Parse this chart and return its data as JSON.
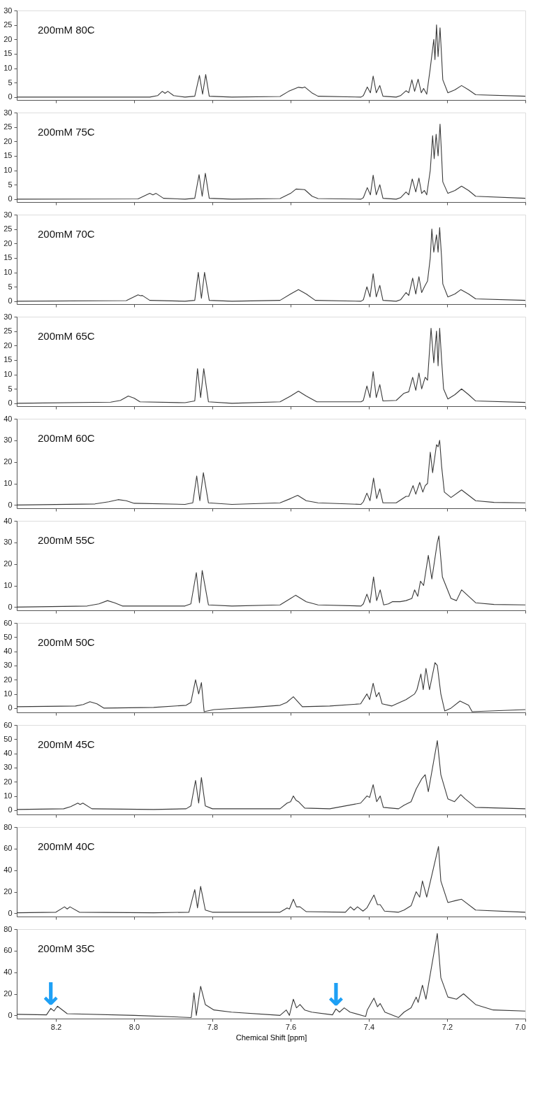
{
  "chart_data": [
    {
      "type": "line",
      "annotations": [
        "200mM 80C"
      ],
      "xlim": [
        8.3,
        7.0
      ],
      "xticks": [
        8.2,
        8.0,
        7.8,
        7.6,
        7.4,
        7.2,
        7.0
      ],
      "ylim": [
        -1,
        30
      ],
      "yticks": [
        0,
        5,
        10,
        15,
        20,
        25,
        30
      ],
      "tick_labels": "y",
      "grid": false,
      "x": [
        8.3,
        7.96,
        7.94,
        7.928,
        7.921,
        7.914,
        7.899,
        7.87,
        7.845,
        7.833,
        7.825,
        7.817,
        7.808,
        7.75,
        7.627,
        7.605,
        7.58,
        7.57,
        7.564,
        7.546,
        7.53,
        7.42,
        7.414,
        7.404,
        7.396,
        7.389,
        7.381,
        7.372,
        7.364,
        7.33,
        7.319,
        7.305,
        7.298,
        7.29,
        7.283,
        7.274,
        7.266,
        7.26,
        7.252,
        7.243,
        7.234,
        7.231,
        7.227,
        7.223,
        7.218,
        7.214,
        7.211,
        7.198,
        7.18,
        7.163,
        7.145,
        7.127,
        7.0
      ],
      "series": [
        {
          "color": "#3a3a3a",
          "values": [
            0,
            0,
            0.5,
            2,
            1.3,
            2,
            0.5,
            0,
            0.3,
            7.5,
            1,
            7.8,
            0.3,
            0,
            0.2,
            2,
            3.4,
            3.2,
            3.5,
            1.5,
            0.3,
            0,
            0.5,
            3.5,
            1.5,
            7.3,
            1.5,
            4,
            0.3,
            0,
            0.5,
            2.2,
            1.5,
            6,
            2,
            6.2,
            1.5,
            3,
            1,
            10,
            20,
            13,
            25,
            14,
            24,
            14,
            6,
            1.5,
            2.5,
            4,
            2.5,
            0.8,
            0.3
          ]
        }
      ]
    },
    {
      "type": "line",
      "annotations": [
        "200mM 75C"
      ],
      "xlim": [
        8.3,
        7.0
      ],
      "xticks": [
        8.2,
        8.0,
        7.8,
        7.6,
        7.4,
        7.2,
        7.0
      ],
      "ylim": [
        -1,
        30
      ],
      "yticks": [
        0,
        5,
        10,
        15,
        20,
        25,
        30
      ],
      "tick_labels": "y",
      "grid": false,
      "x": [
        8.3,
        7.99,
        7.96,
        7.952,
        7.944,
        7.925,
        7.87,
        7.845,
        7.834,
        7.826,
        7.818,
        7.808,
        7.75,
        7.627,
        7.6,
        7.586,
        7.564,
        7.545,
        7.53,
        7.42,
        7.414,
        7.404,
        7.396,
        7.389,
        7.381,
        7.372,
        7.364,
        7.33,
        7.319,
        7.305,
        7.298,
        7.289,
        7.28,
        7.272,
        7.265,
        7.258,
        7.252,
        7.243,
        7.237,
        7.233,
        7.228,
        7.223,
        7.218,
        7.214,
        7.211,
        7.198,
        7.18,
        7.163,
        7.145,
        7.127,
        7.0
      ],
      "series": [
        {
          "color": "#3a3a3a",
          "values": [
            0,
            0.1,
            2,
            1.5,
            2,
            0.3,
            0,
            0.3,
            8.5,
            1,
            9,
            0.3,
            0,
            0.2,
            2,
            3.5,
            3.3,
            1,
            0.2,
            0,
            0.5,
            4,
            1.5,
            8.3,
            1.5,
            5,
            0.3,
            0,
            0.5,
            2.5,
            1.5,
            7,
            2.5,
            7.3,
            2,
            3,
            1.5,
            10,
            22,
            14,
            22.5,
            15,
            26,
            15,
            6,
            2,
            3,
            4.5,
            3,
            1,
            0.3
          ]
        }
      ]
    },
    {
      "type": "line",
      "annotations": [
        "200mM 70C"
      ],
      "xlim": [
        8.3,
        7.0
      ],
      "xticks": [
        8.2,
        8.0,
        7.8,
        7.6,
        7.4,
        7.2,
        7.0
      ],
      "ylim": [
        -1,
        30
      ],
      "yticks": [
        0,
        5,
        10,
        15,
        20,
        25,
        30
      ],
      "tick_labels": "y",
      "grid": false,
      "x": [
        8.3,
        8.02,
        7.99,
        7.984,
        7.979,
        7.96,
        7.87,
        7.845,
        7.836,
        7.828,
        7.82,
        7.808,
        7.75,
        7.627,
        7.6,
        7.58,
        7.56,
        7.537,
        7.42,
        7.414,
        7.405,
        7.397,
        7.389,
        7.381,
        7.372,
        7.364,
        7.33,
        7.319,
        7.305,
        7.298,
        7.288,
        7.28,
        7.272,
        7.265,
        7.258,
        7.25,
        7.243,
        7.239,
        7.234,
        7.227,
        7.223,
        7.219,
        7.214,
        7.211,
        7.198,
        7.18,
        7.165,
        7.145,
        7.127,
        7.0
      ],
      "series": [
        {
          "color": "#3a3a3a",
          "values": [
            0,
            0.2,
            2.2,
            1.9,
            2,
            0.3,
            0,
            0.3,
            10,
            1,
            10,
            0.3,
            0,
            0.3,
            2.5,
            4,
            2.5,
            0.3,
            0,
            0.5,
            5,
            1.5,
            9.5,
            1.5,
            5.5,
            0.3,
            0,
            0.5,
            3,
            2,
            8,
            2.5,
            8.5,
            3,
            5,
            7,
            15,
            25,
            17,
            23,
            17,
            25.5,
            15,
            6,
            1.5,
            2.5,
            4,
            2.5,
            0.8,
            0.3
          ]
        }
      ]
    },
    {
      "type": "line",
      "annotations": [
        "200mM 65C"
      ],
      "xlim": [
        8.3,
        7.0
      ],
      "xticks": [
        8.2,
        8.0,
        7.8,
        7.6,
        7.4,
        7.2,
        7.0
      ],
      "ylim": [
        -1,
        30
      ],
      "yticks": [
        0,
        5,
        10,
        15,
        20,
        25,
        30
      ],
      "tick_labels": "y",
      "grid": false,
      "x": [
        8.3,
        8.06,
        8.035,
        8.015,
        8.0,
        7.985,
        7.87,
        7.845,
        7.838,
        7.83,
        7.822,
        7.81,
        7.75,
        7.627,
        7.6,
        7.58,
        7.56,
        7.533,
        7.42,
        7.414,
        7.405,
        7.397,
        7.389,
        7.381,
        7.372,
        7.364,
        7.33,
        7.31,
        7.298,
        7.288,
        7.28,
        7.272,
        7.265,
        7.256,
        7.25,
        7.241,
        7.234,
        7.227,
        7.223,
        7.219,
        7.214,
        7.209,
        7.198,
        7.18,
        7.163,
        7.145,
        7.127,
        7.0
      ],
      "series": [
        {
          "color": "#3a3a3a",
          "values": [
            0,
            0.4,
            1,
            2.5,
            1.8,
            0.5,
            0.2,
            0.8,
            12,
            2,
            12,
            0.5,
            0,
            0.5,
            2.5,
            4.2,
            2.5,
            0.5,
            0.5,
            1,
            6,
            2,
            11,
            2,
            6.5,
            0.8,
            1,
            3.5,
            4,
            9,
            4.5,
            10.5,
            5,
            9,
            8,
            26,
            14,
            25,
            13,
            26,
            15,
            5,
            1.5,
            3,
            5,
            3,
            0.8,
            0.3
          ]
        }
      ]
    },
    {
      "type": "line",
      "annotations": [
        "200mM 60C"
      ],
      "xlim": [
        8.3,
        7.0
      ],
      "xticks": [
        8.2,
        8.0,
        7.8,
        7.6,
        7.4,
        7.2,
        7.0
      ],
      "ylim": [
        -1.5,
        40
      ],
      "yticks": [
        0,
        10,
        20,
        30,
        40
      ],
      "tick_labels": "y",
      "grid": false,
      "x": [
        8.3,
        8.1,
        8.065,
        8.041,
        8.02,
        8.0,
        7.87,
        7.85,
        7.84,
        7.832,
        7.823,
        7.81,
        7.75,
        7.627,
        7.6,
        7.582,
        7.56,
        7.53,
        7.42,
        7.414,
        7.405,
        7.397,
        7.388,
        7.38,
        7.372,
        7.364,
        7.33,
        7.305,
        7.298,
        7.287,
        7.28,
        7.27,
        7.262,
        7.256,
        7.25,
        7.243,
        7.237,
        7.227,
        7.223,
        7.219,
        7.214,
        7.207,
        7.19,
        7.163,
        7.145,
        7.127,
        7.08,
        7.0
      ],
      "series": [
        {
          "color": "#3a3a3a",
          "values": [
            0,
            0.5,
            1.5,
            2.5,
            2,
            0.8,
            0.3,
            1,
            13.5,
            2,
            15,
            1,
            0.3,
            1,
            3,
            4.5,
            2,
            1,
            0.3,
            1.5,
            5.5,
            2,
            12.5,
            3,
            7.5,
            1,
            1,
            4,
            4,
            9,
            5,
            10.5,
            6,
            9,
            10,
            24.5,
            15,
            28,
            27,
            30,
            18,
            6,
            3.5,
            7,
            4.5,
            2,
            1.2,
            1
          ]
        }
      ]
    },
    {
      "type": "line",
      "annotations": [
        "200mM 55C"
      ],
      "xlim": [
        8.3,
        7.0
      ],
      "xticks": [
        8.2,
        8.0,
        7.8,
        7.6,
        7.4,
        7.2,
        7.0
      ],
      "ylim": [
        -1.5,
        40
      ],
      "yticks": [
        0,
        10,
        20,
        30,
        40
      ],
      "tick_labels": "y",
      "grid": false,
      "x": [
        8.3,
        8.12,
        8.09,
        8.068,
        8.05,
        8.03,
        7.87,
        7.855,
        7.841,
        7.833,
        7.826,
        7.81,
        7.75,
        7.627,
        7.6,
        7.587,
        7.56,
        7.53,
        7.42,
        7.414,
        7.405,
        7.397,
        7.388,
        7.38,
        7.371,
        7.362,
        7.35,
        7.34,
        7.32,
        7.305,
        7.29,
        7.283,
        7.275,
        7.268,
        7.26,
        7.248,
        7.239,
        7.225,
        7.221,
        7.212,
        7.19,
        7.176,
        7.163,
        7.145,
        7.127,
        7.08,
        7.0
      ],
      "series": [
        {
          "color": "#3a3a3a",
          "values": [
            0,
            0.5,
            1.5,
            3,
            2,
            0.5,
            0.5,
            1.5,
            16,
            2,
            17,
            1,
            0.5,
            1,
            4,
            5.5,
            2.5,
            1,
            0.5,
            1.5,
            6,
            2,
            14,
            3,
            8,
            1,
            1.5,
            2.5,
            2.5,
            3,
            4,
            8,
            5,
            12,
            10,
            24,
            13,
            30,
            33,
            14,
            4,
            3,
            8,
            5,
            2,
            1.2,
            1
          ]
        }
      ]
    },
    {
      "type": "line",
      "annotations": [
        "200mM 50C"
      ],
      "xlim": [
        8.3,
        7.0
      ],
      "xticks": [
        8.2,
        8.0,
        7.8,
        7.6,
        7.4,
        7.2,
        7.0
      ],
      "ylim": [
        -3,
        60
      ],
      "yticks": [
        0,
        10,
        20,
        30,
        40,
        50,
        60
      ],
      "tick_labels": "y",
      "grid": false,
      "x": [
        8.3,
        8.15,
        8.13,
        8.113,
        8.095,
        8.077,
        7.95,
        7.867,
        7.855,
        7.843,
        7.835,
        7.828,
        7.821,
        7.796,
        7.7,
        7.627,
        7.61,
        7.593,
        7.57,
        7.5,
        7.421,
        7.405,
        7.398,
        7.389,
        7.381,
        7.374,
        7.366,
        7.341,
        7.305,
        7.283,
        7.277,
        7.267,
        7.261,
        7.254,
        7.245,
        7.231,
        7.225,
        7.216,
        7.206,
        7.19,
        7.167,
        7.145,
        7.136,
        7.0
      ],
      "series": [
        {
          "color": "#3a3a3a",
          "values": [
            1,
            1.5,
            2.5,
            4.5,
            3,
            0,
            0.5,
            2,
            4,
            20,
            10,
            18,
            -2.5,
            -1,
            0.5,
            2,
            4,
            8,
            1,
            1.5,
            3,
            10,
            6,
            17.5,
            8,
            11,
            3,
            1.5,
            6,
            10,
            13,
            24,
            13,
            28,
            13,
            32,
            30,
            10,
            -2,
            0,
            5,
            2,
            -2.5,
            -1
          ]
        }
      ]
    },
    {
      "type": "line",
      "annotations": [
        "200mM 45C"
      ],
      "xlim": [
        8.3,
        7.0
      ],
      "xticks": [
        8.2,
        8.0,
        7.8,
        7.6,
        7.4,
        7.2,
        7.0
      ],
      "ylim": [
        -3,
        60
      ],
      "yticks": [
        0,
        10,
        20,
        30,
        40,
        50,
        60
      ],
      "tick_labels": "y",
      "grid": false,
      "x": [
        8.3,
        8.18,
        8.162,
        8.144,
        8.138,
        8.131,
        8.108,
        7.95,
        7.867,
        7.855,
        7.843,
        7.835,
        7.828,
        7.818,
        7.8,
        7.627,
        7.609,
        7.6,
        7.593,
        7.586,
        7.58,
        7.564,
        7.5,
        7.421,
        7.405,
        7.398,
        7.389,
        7.38,
        7.371,
        7.363,
        7.324,
        7.31,
        7.292,
        7.279,
        7.265,
        7.256,
        7.248,
        7.225,
        7.216,
        7.198,
        7.181,
        7.165,
        7.154,
        7.127,
        7.0
      ],
      "series": [
        {
          "color": "#3a3a3a",
          "values": [
            0.5,
            1,
            2.5,
            5,
            4,
            5,
            1,
            0.5,
            1,
            3,
            21,
            5,
            23,
            3,
            1,
            1,
            5,
            6,
            10,
            7,
            6,
            1.5,
            1,
            5,
            10,
            9,
            18,
            6,
            10,
            2,
            1,
            3.5,
            6,
            15,
            22,
            25,
            13,
            49,
            25,
            8,
            6,
            11,
            8,
            2,
            1
          ]
        }
      ]
    },
    {
      "type": "line",
      "annotations": [
        "200mM 40C"
      ],
      "xlim": [
        8.3,
        7.0
      ],
      "xticks": [
        8.2,
        8.0,
        7.8,
        7.6,
        7.4,
        7.2,
        7.0
      ],
      "ylim": [
        -3,
        80
      ],
      "yticks": [
        0,
        20,
        40,
        60,
        80
      ],
      "tick_labels": "y",
      "grid": false,
      "x": [
        8.3,
        8.2,
        8.178,
        8.171,
        8.164,
        8.14,
        7.95,
        7.86,
        7.845,
        7.838,
        7.83,
        7.818,
        7.8,
        7.627,
        7.609,
        7.603,
        7.593,
        7.585,
        7.576,
        7.56,
        7.46,
        7.447,
        7.438,
        7.429,
        7.415,
        7.405,
        7.387,
        7.378,
        7.371,
        7.36,
        7.324,
        7.31,
        7.292,
        7.279,
        7.27,
        7.263,
        7.252,
        7.222,
        7.216,
        7.198,
        7.176,
        7.163,
        7.127,
        7.0
      ],
      "series": [
        {
          "color": "#3a3a3a",
          "values": [
            0.5,
            1,
            6,
            4,
            6,
            1,
            0.5,
            1,
            22,
            5,
            25,
            3,
            1,
            1,
            5,
            4,
            13,
            6,
            6,
            1.5,
            1,
            6,
            3,
            6,
            2,
            5,
            17,
            8,
            8,
            2,
            1,
            3,
            7,
            20,
            15,
            30,
            15,
            62,
            30,
            10,
            12,
            13,
            3,
            1
          ]
        }
      ]
    },
    {
      "type": "line",
      "annotations": [
        "200mM 35C",
        {
          "text": "↓",
          "x": 8.213,
          "y": 6.5
        },
        {
          "text": "↓",
          "x": 7.484,
          "y": 6
        }
      ],
      "xlabel": "Chemical Shift [ppm]",
      "xlim": [
        8.3,
        7.0
      ],
      "xticks": [
        8.2,
        {
          "value": 8.0,
          "label": "8.0"
        },
        7.8,
        7.6,
        7.4,
        7.2,
        {
          "value": 7.0,
          "label": "7.0"
        }
      ],
      "ylim": [
        -3,
        80
      ],
      "yticks": [
        0,
        20,
        40,
        60,
        80
      ],
      "grid": false,
      "x": [
        8.3,
        8.224,
        8.213,
        8.205,
        8.196,
        8.171,
        8.0,
        7.854,
        7.847,
        7.841,
        7.83,
        7.818,
        7.796,
        7.751,
        7.627,
        7.611,
        7.603,
        7.593,
        7.585,
        7.576,
        7.564,
        7.546,
        7.493,
        7.484,
        7.475,
        7.463,
        7.448,
        7.408,
        7.404,
        7.387,
        7.378,
        7.371,
        7.359,
        7.324,
        7.31,
        7.292,
        7.279,
        7.274,
        7.263,
        7.254,
        7.225,
        7.216,
        7.198,
        7.176,
        7.158,
        7.127,
        7.082,
        7.0
      ],
      "series": [
        {
          "color": "#3a3a3a",
          "values": [
            1,
            0.5,
            6.5,
            4,
            8.5,
            1.5,
            0,
            -2,
            21,
            0,
            27,
            10,
            5,
            3,
            0,
            5,
            0,
            15,
            7,
            10,
            5,
            3,
            0.5,
            6,
            3,
            7,
            3,
            -1,
            5,
            16,
            8,
            11,
            3,
            -2,
            3,
            7,
            17,
            12,
            28,
            15,
            76,
            35,
            17,
            15,
            20,
            10,
            5,
            4
          ]
        }
      ]
    }
  ]
}
